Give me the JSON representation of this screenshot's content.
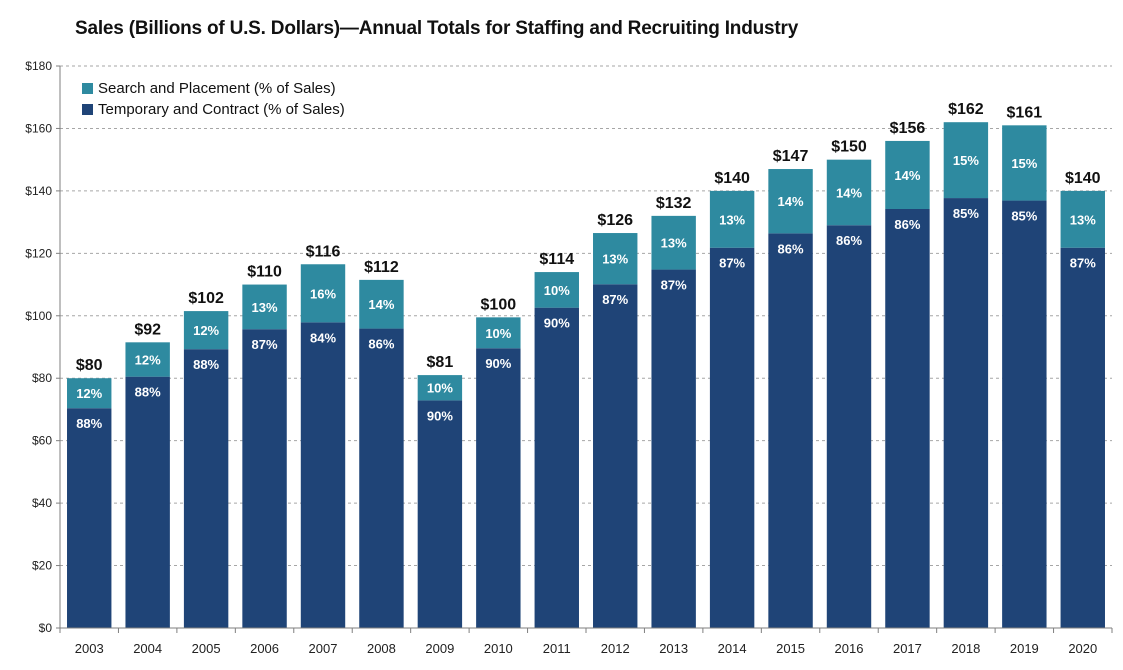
{
  "chart_data": {
    "type": "bar",
    "stacked": true,
    "title": "Sales (Billions of U.S. Dollars)—Annual Totals for Staffing and Recruiting Industry",
    "xlabel": "",
    "ylabel": "",
    "ylim": [
      0,
      180
    ],
    "yticks": [
      0,
      20,
      40,
      60,
      80,
      100,
      120,
      140,
      160,
      180
    ],
    "ytick_labels": [
      "$0",
      "$20",
      "$40",
      "$60",
      "$80",
      "$100",
      "$120",
      "$140",
      "$160",
      "$180"
    ],
    "grid": true,
    "legend_position": "top-left",
    "categories": [
      "2003",
      "2004",
      "2005",
      "2006",
      "2007",
      "2008",
      "2009",
      "2010",
      "2011",
      "2012",
      "2013",
      "2014",
      "2015",
      "2016",
      "2017",
      "2018",
      "2019",
      "2020"
    ],
    "totals": [
      80,
      91.5,
      101.5,
      110,
      116.5,
      111.5,
      81,
      99.5,
      114,
      126.5,
      132,
      140,
      147,
      150,
      156,
      162,
      161,
      140
    ],
    "total_labels": [
      "$80",
      "$92",
      "$102",
      "$110",
      "$116",
      "$112",
      "$81",
      "$100",
      "$114",
      "$126",
      "$132",
      "$140",
      "$147",
      "$150",
      "$156",
      "$162",
      "$161",
      "$140"
    ],
    "series": [
      {
        "name": "Temporary and Contract (% of Sales)",
        "color": "#1f4477",
        "values": [
          70.4,
          80.5,
          89.3,
          95.7,
          97.9,
          95.9,
          72.9,
          89.6,
          102.6,
          110.1,
          114.8,
          121.8,
          126.4,
          129.0,
          134.2,
          137.7,
          136.9,
          121.8
        ],
        "pct_labels": [
          "88%",
          "88%",
          "88%",
          "87%",
          "84%",
          "86%",
          "90%",
          "90%",
          "90%",
          "87%",
          "87%",
          "87%",
          "86%",
          "86%",
          "86%",
          "85%",
          "85%",
          "87%"
        ]
      },
      {
        "name": "Search and Placement (% of Sales)",
        "color": "#2e8aa0",
        "values": [
          9.6,
          11.0,
          12.2,
          14.3,
          18.6,
          15.6,
          8.1,
          9.9,
          11.4,
          16.4,
          17.2,
          18.2,
          20.6,
          21.0,
          21.8,
          24.3,
          24.1,
          18.2
        ],
        "pct_labels": [
          "12%",
          "12%",
          "12%",
          "13%",
          "16%",
          "14%",
          "10%",
          "10%",
          "10%",
          "13%",
          "13%",
          "13%",
          "14%",
          "14%",
          "14%",
          "15%",
          "15%",
          "13%"
        ]
      }
    ]
  }
}
